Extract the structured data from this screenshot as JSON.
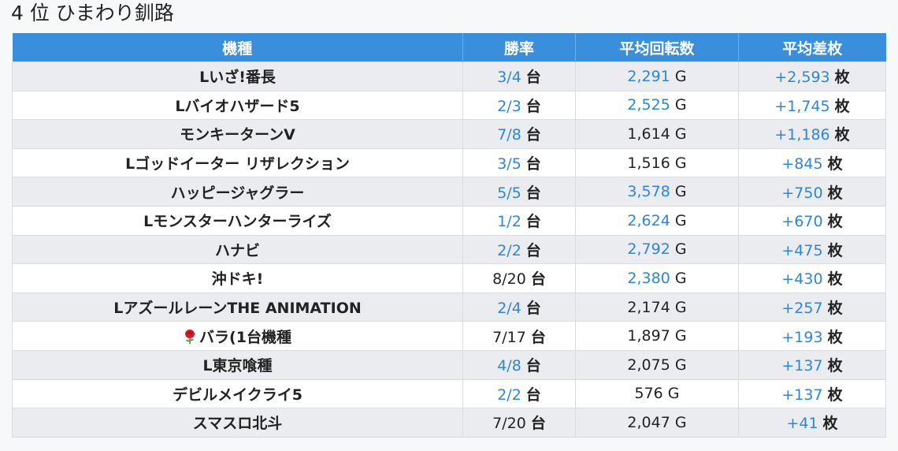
{
  "page": {
    "title": "4 位 ひまわり釧路"
  },
  "table": {
    "headers": [
      "機種",
      "勝率",
      "平均回転数",
      "平均差枚"
    ],
    "rows": [
      {
        "machine": "Lいざ!番長",
        "win_rate": "3/4",
        "win_unit": "台",
        "spins": "2,291",
        "spins_unit": "G",
        "diff": "+2,593",
        "diff_unit": "枚",
        "win_blue": true,
        "spins_blue": true,
        "diff_blue": true
      },
      {
        "machine": "Lバイオハザード5",
        "win_rate": "2/3",
        "win_unit": "台",
        "spins": "2,525",
        "spins_unit": "G",
        "diff": "+1,745",
        "diff_unit": "枚",
        "win_blue": true,
        "spins_blue": true,
        "diff_blue": true
      },
      {
        "machine": "モンキーターンV",
        "win_rate": "7/8",
        "win_unit": "台",
        "spins": "1,614",
        "spins_unit": "G",
        "diff": "+1,186",
        "diff_unit": "枚",
        "win_blue": true,
        "spins_blue": false,
        "diff_blue": true
      },
      {
        "machine": "Lゴッドイーター リザレクション",
        "win_rate": "3/5",
        "win_unit": "台",
        "spins": "1,516",
        "spins_unit": "G",
        "diff": "+845",
        "diff_unit": "枚",
        "win_blue": true,
        "spins_blue": false,
        "diff_blue": true
      },
      {
        "machine": "ハッピージャグラー",
        "win_rate": "5/5",
        "win_unit": "台",
        "spins": "3,578",
        "spins_unit": "G",
        "diff": "+750",
        "diff_unit": "枚",
        "win_blue": true,
        "spins_blue": true,
        "diff_blue": true
      },
      {
        "machine": "Lモンスターハンターライズ",
        "win_rate": "1/2",
        "win_unit": "台",
        "spins": "2,624",
        "spins_unit": "G",
        "diff": "+670",
        "diff_unit": "枚",
        "win_blue": true,
        "spins_blue": true,
        "diff_blue": true
      },
      {
        "machine": "ハナビ",
        "win_rate": "2/2",
        "win_unit": "台",
        "spins": "2,792",
        "spins_unit": "G",
        "diff": "+475",
        "diff_unit": "枚",
        "win_blue": true,
        "spins_blue": true,
        "diff_blue": true
      },
      {
        "machine": "沖ドキ!",
        "win_rate": "8/20",
        "win_unit": "台",
        "spins": "2,380",
        "spins_unit": "G",
        "diff": "+430",
        "diff_unit": "枚",
        "win_blue": false,
        "spins_blue": true,
        "diff_blue": true
      },
      {
        "machine": "LアズールレーンTHE ANIMATION",
        "win_rate": "2/4",
        "win_unit": "台",
        "spins": "2,174",
        "spins_unit": "G",
        "diff": "+257",
        "diff_unit": "枚",
        "win_blue": true,
        "spins_blue": false,
        "diff_blue": true
      },
      {
        "machine": "バラ(1台機種",
        "icon": "rose-icon",
        "win_rate": "7/17",
        "win_unit": "台",
        "spins": "1,897",
        "spins_unit": "G",
        "diff": "+193",
        "diff_unit": "枚",
        "win_blue": false,
        "spins_blue": false,
        "diff_blue": true
      },
      {
        "machine": "L東京喰種",
        "win_rate": "4/8",
        "win_unit": "台",
        "spins": "2,075",
        "spins_unit": "G",
        "diff": "+137",
        "diff_unit": "枚",
        "win_blue": true,
        "spins_blue": false,
        "diff_blue": true
      },
      {
        "machine": "デビルメイクライ5",
        "win_rate": "2/2",
        "win_unit": "台",
        "spins": "576",
        "spins_unit": "G",
        "diff": "+137",
        "diff_unit": "枚",
        "win_blue": true,
        "spins_blue": false,
        "diff_blue": true
      },
      {
        "machine": "スマスロ北斗",
        "win_rate": "7/20",
        "win_unit": "台",
        "spins": "2,047",
        "spins_unit": "G",
        "diff": "+41",
        "diff_unit": "枚",
        "win_blue": false,
        "spins_blue": false,
        "diff_blue": true
      }
    ]
  },
  "colors": {
    "header_bg": "#3a8fdc",
    "accent_blue": "#2f86d6",
    "row_stripe": "#eaecef"
  }
}
